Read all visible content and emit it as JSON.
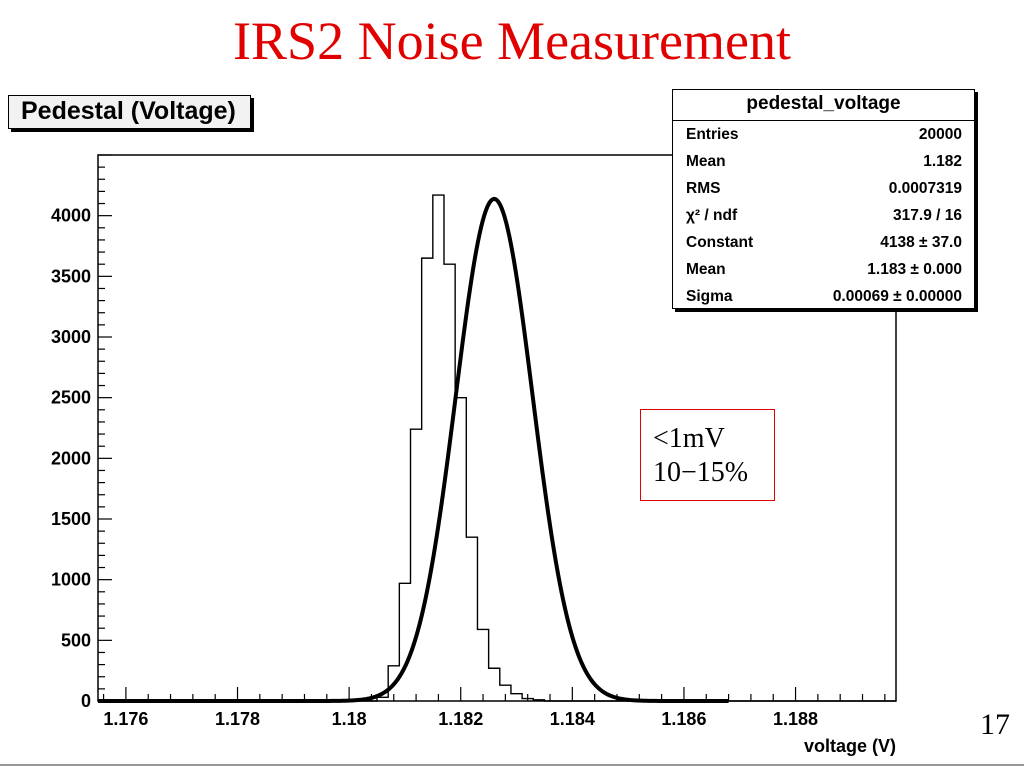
{
  "slide_title": "IRS2 Noise Measurement",
  "histogram_title": "Pedestal (Voltage)",
  "stats": {
    "name": "pedestal_voltage",
    "rows": [
      {
        "label": "Entries",
        "value": "20000"
      },
      {
        "label": "Mean",
        "value": "1.182"
      },
      {
        "label": "RMS",
        "value": "0.0007319"
      },
      {
        "label": "χ² / ndf",
        "value": "317.9 / 16"
      },
      {
        "label": "Constant",
        "value": "4138 ± 37.0"
      },
      {
        "label": "Mean",
        "value": "1.183 ± 0.000"
      },
      {
        "label": "Sigma",
        "value": "0.00069 ± 0.00000"
      }
    ]
  },
  "note": {
    "line1": "<1mV",
    "line2": "10−15%"
  },
  "page_number": "17",
  "colors": {
    "title": "#e00000",
    "note_border": "#e00000",
    "plot": "#000000"
  },
  "chart_data": {
    "type": "histogram",
    "xlabel": "voltage (V)",
    "ylabel": "",
    "xlim": [
      1.1755,
      1.1898
    ],
    "ylim": [
      0,
      4500
    ],
    "x_ticks": [
      {
        "value": 1.176,
        "label": "1.176"
      },
      {
        "value": 1.178,
        "label": "1.178"
      },
      {
        "value": 1.18,
        "label": "1.18"
      },
      {
        "value": 1.182,
        "label": "1.182"
      },
      {
        "value": 1.184,
        "label": "1.184"
      },
      {
        "value": 1.186,
        "label": "1.186"
      },
      {
        "value": 1.188,
        "label": "1.188"
      }
    ],
    "y_ticks": [
      0,
      500,
      1000,
      1500,
      2000,
      2500,
      3000,
      3500,
      4000
    ],
    "bin_width": 0.0002,
    "bin_edges_start": 1.1805,
    "bin_values": [
      30,
      290,
      970,
      2240,
      3650,
      4170,
      3600,
      2500,
      1350,
      590,
      270,
      130,
      60,
      20,
      10
    ],
    "fit": {
      "function": "gaus",
      "constant": 4138,
      "mean": 1.1826,
      "sigma": 0.00069
    }
  }
}
